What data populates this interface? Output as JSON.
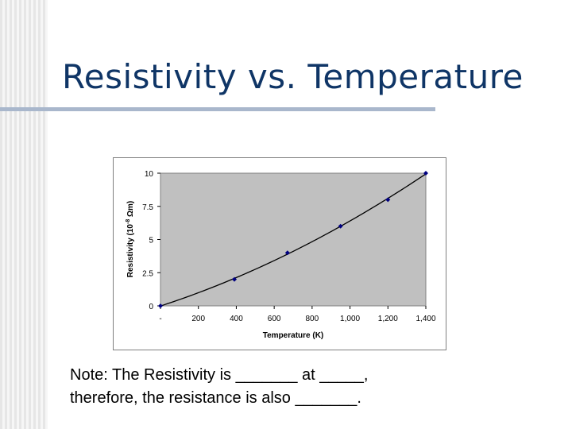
{
  "title": "Resistivity vs. Temperature",
  "note": {
    "line1": "Note: The Resistivity is _______ at _____,",
    "line2": "therefore, the resistance is also _______."
  },
  "colors": {
    "title": "#0f3566",
    "plot_bg": "#c0c0c0",
    "marker": "#000080",
    "curve": "#000000"
  },
  "chart_data": {
    "type": "scatter",
    "xlabel": "Temperature (K)",
    "ylabel_prefix": "Resistivity (10",
    "ylabel_exponent": "-8",
    "ylabel_suffix": " Ωm)",
    "xlim": [
      0,
      1400
    ],
    "ylim": [
      0,
      10
    ],
    "x_ticks": [
      0,
      200,
      400,
      600,
      800,
      1000,
      1200,
      1400
    ],
    "x_tick_labels": [
      "-",
      "200",
      "400",
      "600",
      "800",
      "1,000",
      "1,200",
      "1,400"
    ],
    "y_ticks": [
      0,
      2.5,
      5,
      7.5,
      10
    ],
    "y_tick_labels": [
      "0",
      "2.5",
      "5",
      "7.5",
      "10"
    ],
    "grid": false,
    "series": [
      {
        "points": [
          [
            0,
            0
          ],
          [
            390,
            2
          ],
          [
            670,
            4
          ],
          [
            950,
            6
          ],
          [
            1200,
            8
          ],
          [
            1400,
            10
          ]
        ],
        "trendline": true
      }
    ]
  }
}
